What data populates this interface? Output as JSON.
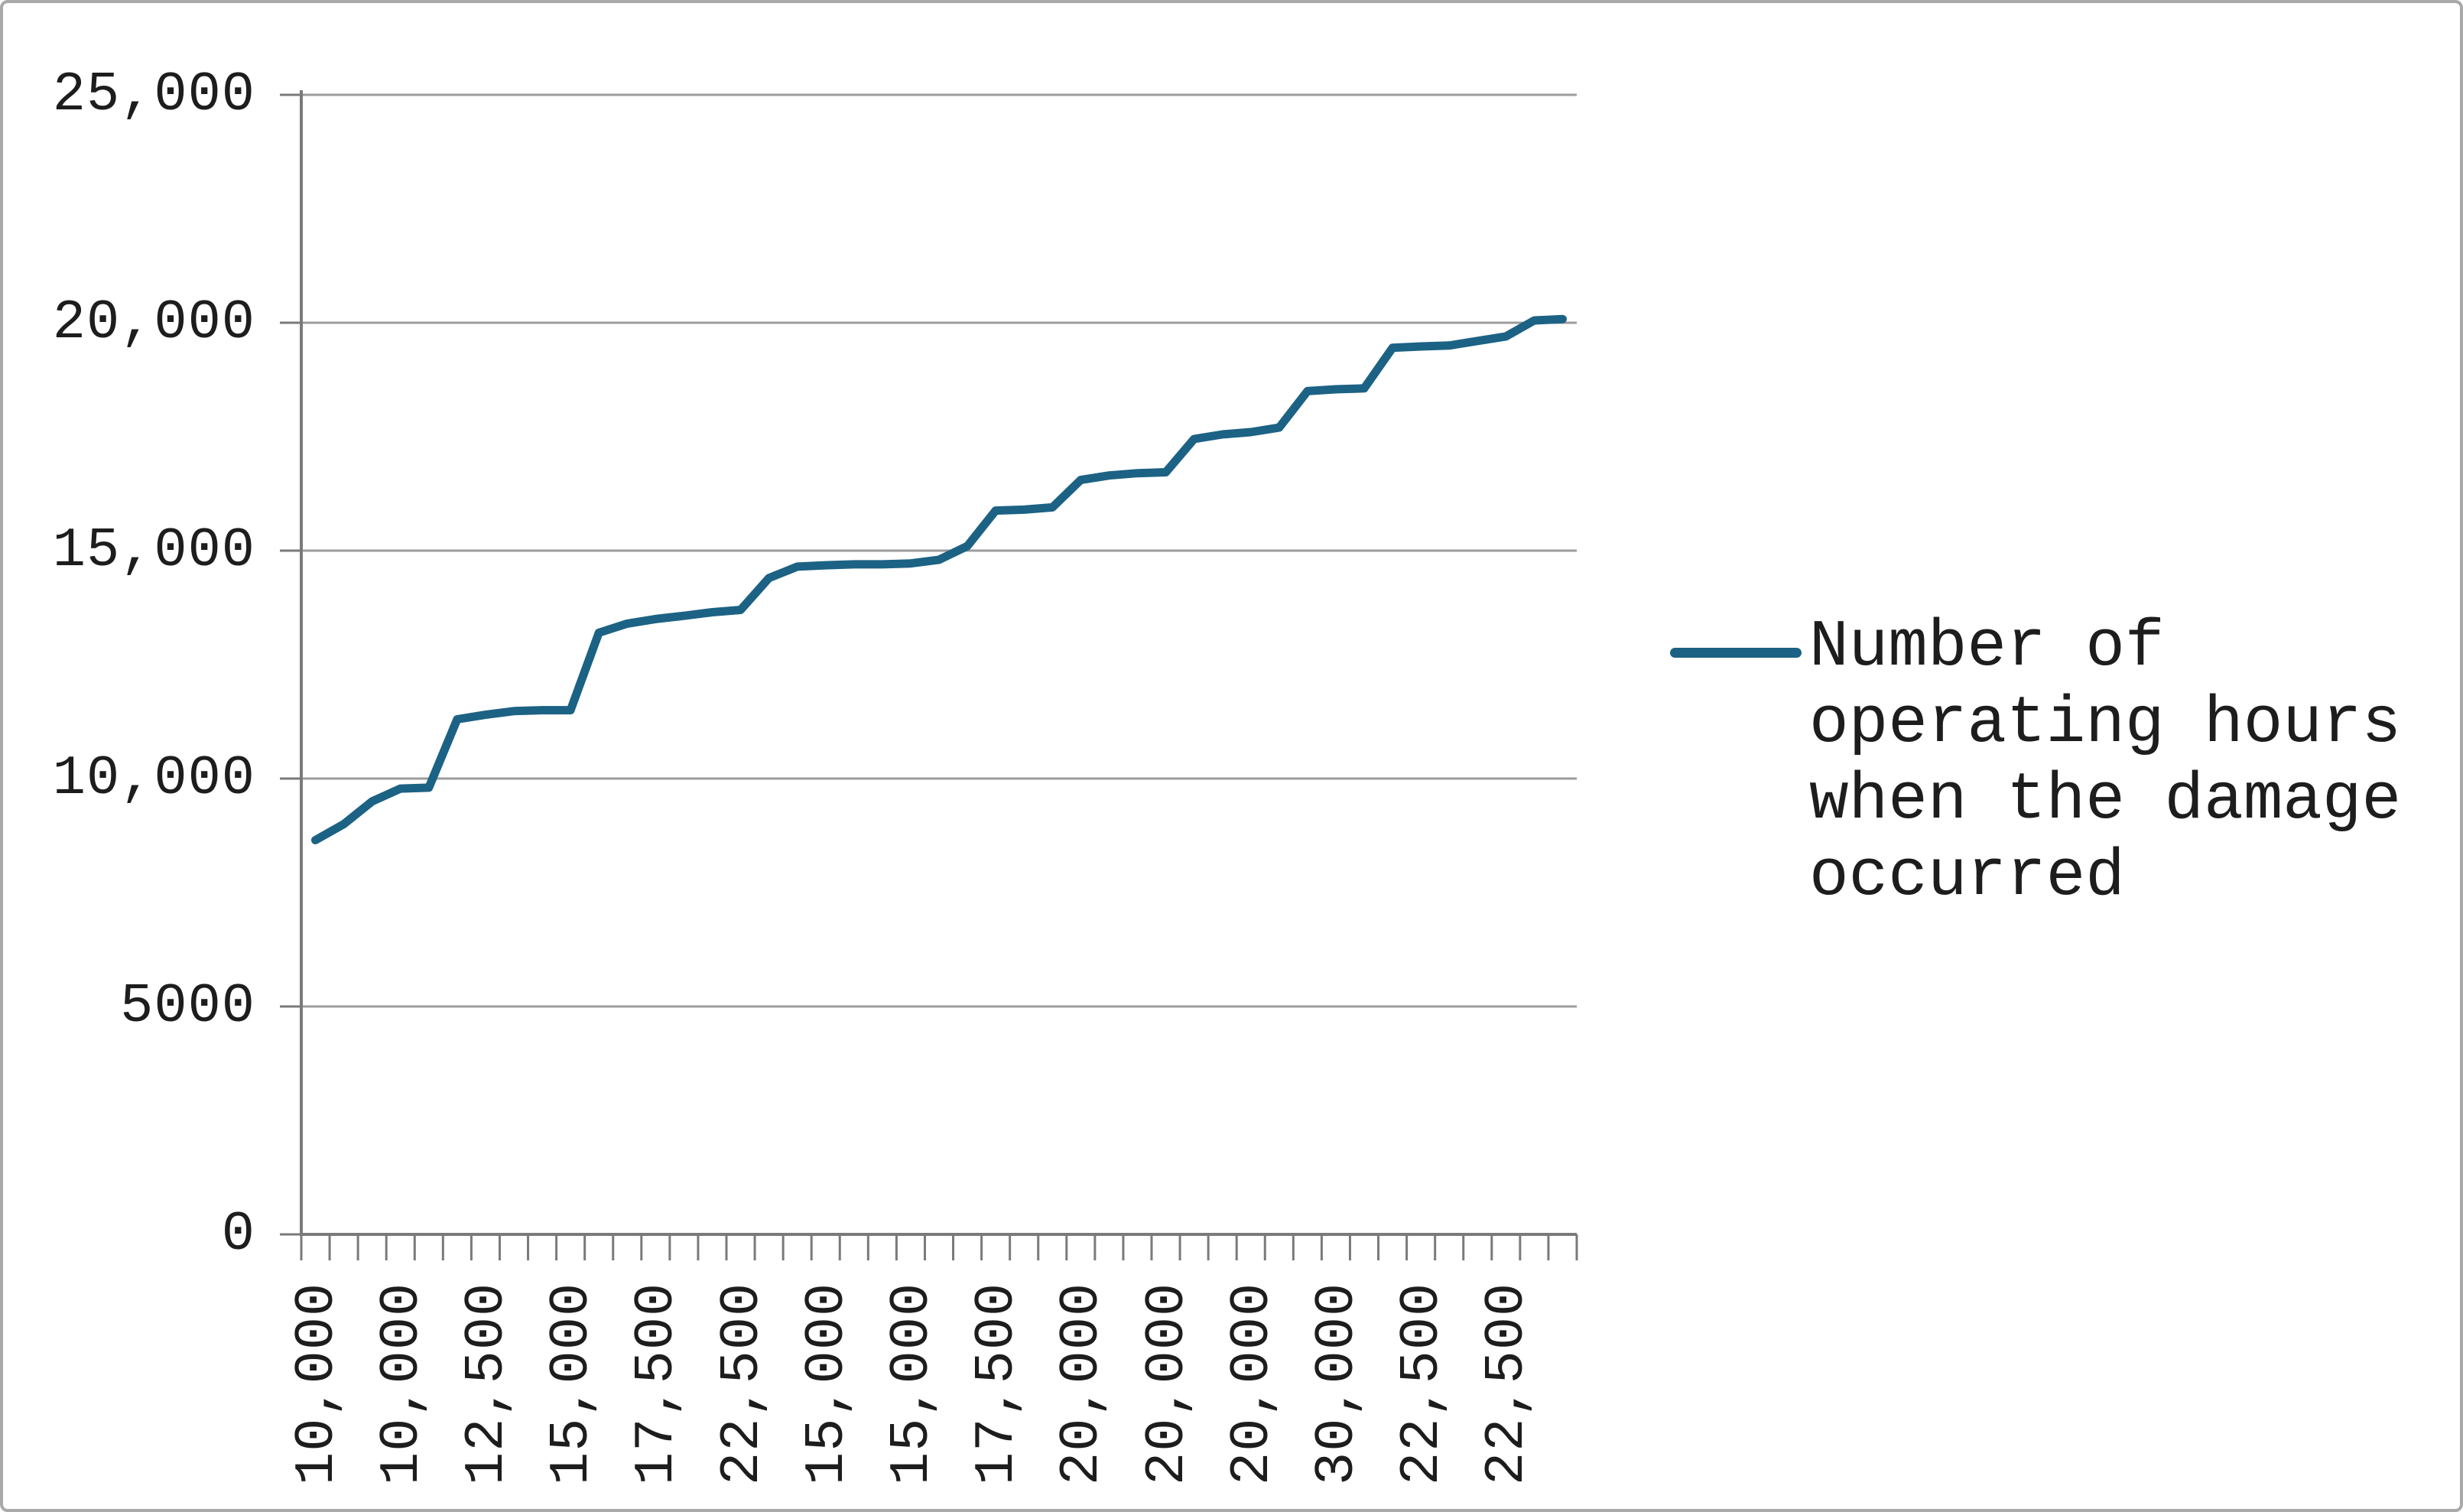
{
  "colors": {
    "line": "#1C6284",
    "grid": "#9C9C9C",
    "axis": "#7A7A7A",
    "text": "#1D1D1D",
    "border": "#A9A9A9",
    "background": "#FFFFFF"
  },
  "legend": {
    "lines": [
      "Number of",
      "operating hours",
      "when the damage",
      "occurred"
    ]
  },
  "chart_data": {
    "type": "line",
    "title": "",
    "xlabel": "",
    "ylabel": "",
    "ylim": [
      0,
      25000
    ],
    "y_tick_labels": [
      "25,000",
      "20,000",
      "15,000",
      "10,000",
      "5000",
      "0"
    ],
    "y_tick_values": [
      25000,
      20000,
      15000,
      10000,
      5000,
      0
    ],
    "grid": "horizontal",
    "legend_position": "right",
    "x_tick_labels": [
      "10,000",
      "10,000",
      "12,500",
      "15,000",
      "17,500",
      "22,500",
      "15,000",
      "15,000",
      "17,500",
      "20,000",
      "20,000",
      "20,000",
      "30,000",
      "22,500",
      "22,500"
    ],
    "x_label_every_n_categories": 3,
    "n_points": 45,
    "series": [
      {
        "name": "Number of operating hours when the damage occurred",
        "values": [
          8650,
          9000,
          9500,
          9780,
          9800,
          11300,
          11400,
          11480,
          11500,
          11500,
          13200,
          13400,
          13500,
          13570,
          13650,
          13700,
          14400,
          14650,
          14680,
          14700,
          14700,
          14720,
          14800,
          15100,
          15880,
          15900,
          15950,
          16550,
          16650,
          16700,
          16720,
          17450,
          17550,
          17600,
          17700,
          18500,
          18540,
          18560,
          19450,
          19480,
          19500,
          19600,
          19700,
          20050,
          20080
        ]
      }
    ]
  }
}
